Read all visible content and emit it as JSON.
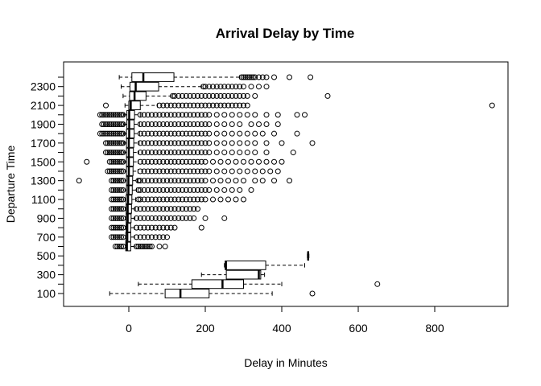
{
  "chart_data": {
    "type": "boxplot",
    "orientation": "horizontal",
    "title": "Arrival Delay by Time",
    "xlabel": "Delay in Minutes",
    "ylabel": "Departure Time",
    "xlim": [
      -170,
      1000
    ],
    "x_ticks": [
      0,
      200,
      400,
      600,
      800
    ],
    "y_tick_labels": [
      "100",
      "300",
      "500",
      "700",
      "900",
      "1100",
      "1300",
      "1500",
      "1700",
      "1900",
      "2100",
      "2300"
    ],
    "categories": [
      "100",
      "200",
      "300",
      "400",
      "500",
      "600",
      "700",
      "800",
      "900",
      "1000",
      "1100",
      "1200",
      "1300",
      "1400",
      "1500",
      "1600",
      "1700",
      "1800",
      "1900",
      "2000",
      "2100",
      "2200",
      "2300",
      "2400"
    ],
    "grid": false,
    "legend": "none",
    "boxes": [
      {
        "category": "100",
        "whisker_low": -50,
        "q1": 95,
        "median": 135,
        "q3": 210,
        "whisker_high": 375,
        "outliers": [
          480
        ]
      },
      {
        "category": "200",
        "whisker_low": 25,
        "q1": 165,
        "median": 245,
        "q3": 300,
        "whisker_high": 400,
        "outliers": [
          650
        ]
      },
      {
        "category": "300",
        "whisker_low": 190,
        "q1": 255,
        "median": 340,
        "q3": 345,
        "whisker_high": 355,
        "outliers": []
      },
      {
        "category": "400",
        "whisker_low": 250,
        "q1": 252,
        "median": 254,
        "q3": 358,
        "whisker_high": 460,
        "outliers": []
      },
      {
        "category": "500",
        "whisker_low": 467,
        "q1": 468,
        "median": 469,
        "q3": 470,
        "whisker_high": 471,
        "outliers": []
      },
      {
        "category": "600",
        "whisker_low": -8,
        "q1": -8,
        "median": -5,
        "q3": 5,
        "whisker_high": 15,
        "outliers": [
          -35,
          -30,
          -25,
          -20,
          -15,
          20,
          25,
          30,
          35,
          40,
          45,
          50,
          55,
          60,
          80,
          95
        ]
      },
      {
        "category": "700",
        "whisker_low": -8,
        "q1": -8,
        "median": -4,
        "q3": 5,
        "whisker_high": 15,
        "outliers": [
          -45,
          -40,
          -35,
          -30,
          -25,
          -20,
          -15,
          20,
          30,
          40,
          50,
          60,
          70,
          80,
          90,
          100
        ]
      },
      {
        "category": "800",
        "whisker_low": -8,
        "q1": -7,
        "median": -4,
        "q3": 5,
        "whisker_high": 15,
        "outliers": [
          -45,
          -40,
          -35,
          -30,
          -25,
          -20,
          -15,
          20,
          30,
          40,
          50,
          60,
          70,
          80,
          90,
          100,
          110,
          120,
          190
        ]
      },
      {
        "category": "900",
        "whisker_low": -8,
        "q1": -7,
        "median": -3,
        "q3": 6,
        "whisker_high": 16,
        "outliers": [
          -45,
          -40,
          -35,
          -30,
          -25,
          -20,
          -15,
          20,
          30,
          40,
          50,
          60,
          70,
          80,
          90,
          100,
          110,
          120,
          130,
          140,
          150,
          160,
          170,
          200,
          250
        ]
      },
      {
        "category": "1000",
        "whisker_low": -9,
        "q1": -7,
        "median": -3,
        "q3": 7,
        "whisker_high": 17,
        "outliers": [
          -45,
          -40,
          -35,
          -30,
          -25,
          -20,
          -15,
          20,
          30,
          40,
          50,
          60,
          70,
          80,
          90,
          100,
          110,
          120,
          130,
          140,
          150,
          160,
          170,
          180
        ]
      },
      {
        "category": "1100",
        "whisker_low": -10,
        "q1": -7,
        "median": -2,
        "q3": 8,
        "whisker_high": 18,
        "outliers": [
          -45,
          -40,
          -35,
          -30,
          -25,
          -20,
          -15,
          25,
          30,
          40,
          50,
          60,
          70,
          80,
          90,
          100,
          110,
          120,
          130,
          140,
          150,
          160,
          170,
          180,
          190,
          200,
          220,
          240,
          260,
          280,
          300
        ]
      },
      {
        "category": "1200",
        "whisker_low": -10,
        "q1": -6,
        "median": -1,
        "q3": 9,
        "whisker_high": 20,
        "outliers": [
          -45,
          -40,
          -35,
          -30,
          -25,
          -20,
          -15,
          25,
          30,
          40,
          50,
          60,
          70,
          80,
          90,
          100,
          110,
          120,
          130,
          140,
          150,
          160,
          170,
          180,
          190,
          200,
          210,
          230,
          250,
          270,
          290,
          320
        ]
      },
      {
        "category": "1300",
        "whisker_low": -10,
        "q1": -6,
        "median": -1,
        "q3": 10,
        "whisker_high": 22,
        "outliers": [
          -130,
          -45,
          -40,
          -35,
          -30,
          -25,
          -20,
          -15,
          25,
          30,
          40,
          50,
          60,
          70,
          80,
          90,
          100,
          110,
          120,
          130,
          140,
          150,
          160,
          170,
          180,
          190,
          200,
          220,
          240,
          260,
          280,
          300,
          330,
          350,
          380,
          420
        ]
      },
      {
        "category": "1400",
        "whisker_low": -10,
        "q1": -6,
        "median": 0,
        "q3": 11,
        "whisker_high": 24,
        "outliers": [
          -55,
          -50,
          -45,
          -40,
          -35,
          -30,
          -25,
          -20,
          -15,
          30,
          40,
          50,
          60,
          70,
          80,
          90,
          100,
          110,
          120,
          130,
          140,
          150,
          160,
          170,
          180,
          190,
          200,
          210,
          230,
          250,
          270,
          290,
          310,
          330,
          350,
          370,
          390
        ]
      },
      {
        "category": "1500",
        "whisker_low": -11,
        "q1": -6,
        "median": 0,
        "q3": 12,
        "whisker_high": 25,
        "outliers": [
          -110,
          -50,
          -45,
          -40,
          -35,
          -30,
          -25,
          -20,
          -15,
          30,
          40,
          50,
          60,
          70,
          80,
          90,
          100,
          110,
          120,
          130,
          140,
          150,
          160,
          170,
          180,
          190,
          200,
          220,
          240,
          260,
          280,
          300,
          320,
          340,
          360,
          380,
          400
        ]
      },
      {
        "category": "1600",
        "whisker_low": -11,
        "q1": -6,
        "median": 0,
        "q3": 12,
        "whisker_high": 26,
        "outliers": [
          -60,
          -55,
          -50,
          -45,
          -40,
          -35,
          -30,
          -25,
          -20,
          -15,
          30,
          40,
          50,
          60,
          70,
          80,
          90,
          100,
          110,
          120,
          130,
          140,
          150,
          160,
          170,
          180,
          190,
          200,
          210,
          230,
          250,
          270,
          290,
          310,
          330,
          360,
          430
        ]
      },
      {
        "category": "1700",
        "whisker_low": -12,
        "q1": -6,
        "median": 0,
        "q3": 13,
        "whisker_high": 27,
        "outliers": [
          -60,
          -55,
          -50,
          -45,
          -40,
          -35,
          -30,
          -25,
          -20,
          -15,
          30,
          40,
          50,
          60,
          70,
          80,
          90,
          100,
          110,
          120,
          130,
          140,
          150,
          160,
          170,
          180,
          190,
          200,
          210,
          230,
          250,
          270,
          290,
          310,
          330,
          360,
          400,
          480
        ]
      },
      {
        "category": "1800",
        "whisker_low": -12,
        "q1": -6,
        "median": 1,
        "q3": 14,
        "whisker_high": 28,
        "outliers": [
          -75,
          -70,
          -65,
          -60,
          -55,
          -50,
          -45,
          -40,
          -35,
          -30,
          -25,
          -20,
          -15,
          30,
          40,
          50,
          60,
          70,
          80,
          90,
          100,
          110,
          120,
          130,
          140,
          150,
          160,
          170,
          180,
          190,
          200,
          210,
          230,
          250,
          270,
          290,
          310,
          330,
          350,
          380,
          440
        ]
      },
      {
        "category": "1900",
        "whisker_low": -12,
        "q1": -5,
        "median": 1,
        "q3": 14,
        "whisker_high": 28,
        "outliers": [
          -70,
          -65,
          -60,
          -55,
          -50,
          -45,
          -40,
          -35,
          -30,
          -25,
          -20,
          -15,
          30,
          40,
          50,
          60,
          70,
          80,
          90,
          100,
          110,
          120,
          130,
          140,
          150,
          160,
          170,
          180,
          190,
          200,
          210,
          230,
          250,
          270,
          290,
          320,
          340,
          360,
          390
        ]
      },
      {
        "category": "2000",
        "whisker_low": -12,
        "q1": -5,
        "median": 1,
        "q3": 15,
        "whisker_high": 30,
        "outliers": [
          -75,
          -70,
          -65,
          -60,
          -55,
          -50,
          -45,
          -40,
          -35,
          -30,
          -25,
          -20,
          -15,
          30,
          40,
          50,
          60,
          70,
          80,
          90,
          100,
          110,
          120,
          130,
          140,
          150,
          160,
          170,
          180,
          190,
          200,
          210,
          230,
          250,
          270,
          290,
          310,
          330,
          360,
          390,
          440,
          460
        ]
      },
      {
        "category": "2100",
        "whisker_low": -10,
        "q1": 0,
        "median": 5,
        "q3": 30,
        "whisker_high": 75,
        "outliers": [
          -60,
          80,
          90,
          100,
          110,
          120,
          130,
          140,
          150,
          160,
          170,
          180,
          190,
          200,
          210,
          220,
          230,
          240,
          250,
          260,
          270,
          280,
          290,
          300,
          310,
          950
        ]
      },
      {
        "category": "2200",
        "whisker_low": -15,
        "q1": 2,
        "median": 15,
        "q3": 45,
        "whisker_high": 110,
        "outliers": [
          115,
          120,
          130,
          140,
          150,
          160,
          170,
          180,
          190,
          200,
          210,
          220,
          230,
          240,
          250,
          260,
          270,
          280,
          290,
          300,
          310,
          330,
          520
        ]
      },
      {
        "category": "2300",
        "whisker_low": -20,
        "q1": 3,
        "median": 18,
        "q3": 78,
        "whisker_high": 190,
        "outliers": [
          195,
          200,
          210,
          220,
          230,
          240,
          250,
          260,
          270,
          280,
          290,
          300,
          320,
          340,
          360
        ]
      },
      {
        "category": "2400",
        "whisker_low": -25,
        "q1": 8,
        "median": 38,
        "q3": 118,
        "whisker_high": 290,
        "outliers": [
          295,
          300,
          305,
          310,
          315,
          320,
          325,
          330,
          340,
          350,
          360,
          380,
          420,
          475
        ]
      }
    ]
  }
}
